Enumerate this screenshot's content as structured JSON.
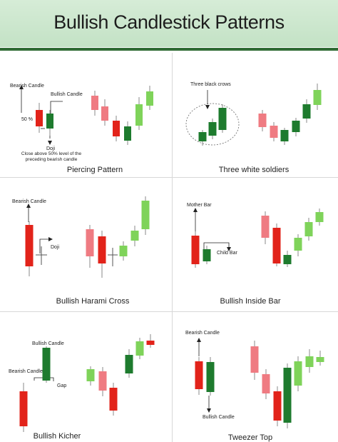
{
  "title": "Bullish Candlestick Patterns",
  "colors": {
    "bear_dark": "#e2231a",
    "bear_light": "#ef7b82",
    "bull_dark": "#1e7b2e",
    "bull_light": "#7fd35a",
    "header_bg": "#c8e6c9",
    "header_line": "#2f6b34"
  },
  "panels": [
    {
      "id": "piercing",
      "caption": "Piercing Pattern",
      "labels": {
        "bearish": "Bearish Candle",
        "bullish": "Bullish Candle",
        "pct": "50 %",
        "doji": "Doji",
        "note_line1": "Close above 50% level of the",
        "note_line2": "preceding bearish candle"
      }
    },
    {
      "id": "three-white-soldiers",
      "caption": "Three white soldiers",
      "labels": {
        "crows": "Three black crows"
      }
    },
    {
      "id": "harami-cross",
      "caption": "Bullish Harami Cross",
      "labels": {
        "bearish": "Bearish Candle",
        "doji": "Doji"
      }
    },
    {
      "id": "inside-bar",
      "caption": "Bullish Inside Bar",
      "labels": {
        "mother": "Mother Bar",
        "child": "Child Bar"
      }
    },
    {
      "id": "kicker",
      "caption": "Bullish Kicher",
      "labels": {
        "bullish": "Bullish Candle",
        "bearish": "Bearish Candle",
        "gap": "Gap"
      }
    },
    {
      "id": "tweezer",
      "caption": "Tweezer Top",
      "labels": {
        "bearish": "Bearish Candle",
        "bullish": "Bullish Candle"
      }
    }
  ]
}
